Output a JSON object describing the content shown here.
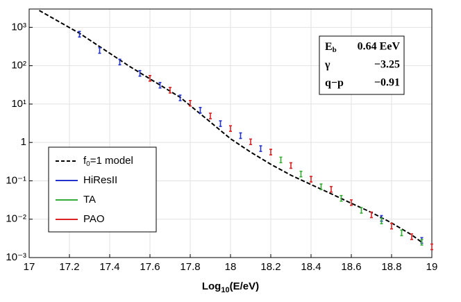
{
  "chart_data": {
    "type": "scatter",
    "x_label": {
      "text": "Log",
      "sub": "10",
      "rest": "(E/eV)"
    },
    "xlim": [
      17,
      19
    ],
    "xticks": [
      17,
      17.2,
      17.4,
      17.6,
      17.8,
      18,
      18.2,
      18.4,
      18.6,
      18.8,
      19
    ],
    "ylim": [
      0.001,
      3000
    ],
    "log_y": true,
    "grid": true,
    "yticks": [
      {
        "value": 0.001,
        "label": "10⁻³"
      },
      {
        "value": 0.01,
        "label": "10⁻²"
      },
      {
        "value": 0.1,
        "label": "10⁻¹"
      },
      1,
      {
        "value": 10,
        "label": "10¹"
      },
      {
        "value": 100,
        "label": "10²"
      },
      {
        "value": 1000,
        "label": "10³"
      }
    ],
    "legend": "lower left",
    "model": {
      "name": {
        "text": "f",
        "sub": "0",
        "rest": "=1 model"
      },
      "color": "#000000",
      "x": [
        17.05,
        17.25,
        17.5,
        17.75,
        17.9,
        18.0,
        18.1,
        18.2,
        18.3,
        18.4,
        18.5,
        18.6,
        18.7,
        18.8,
        18.9,
        18.95
      ],
      "values": [
        2750,
        700,
        95,
        15,
        3.4,
        1.25,
        0.56,
        0.27,
        0.14,
        0.08,
        0.046,
        0.026,
        0.015,
        0.008,
        0.0039,
        0.0025
      ]
    },
    "series": [
      {
        "name": "HiResII",
        "color": "#2233cc",
        "x": [
          17.25,
          17.35,
          17.45,
          17.55,
          17.65,
          17.75,
          17.85,
          17.95,
          18.05,
          18.15,
          18.75,
          18.95
        ],
        "values": [
          660,
          250,
          125,
          63,
          31,
          14.5,
          6.9,
          3.1,
          1.5,
          0.69,
          0.0105,
          0.0028
        ]
      },
      {
        "name": "TA",
        "color": "#33aa33",
        "x": [
          18.25,
          18.35,
          18.45,
          18.55,
          18.65,
          18.75,
          18.85,
          18.95
        ],
        "values": [
          0.35,
          0.15,
          0.07,
          0.035,
          0.017,
          0.009,
          0.0044,
          0.0025
        ]
      },
      {
        "name": "PAO",
        "color": "#dd2222",
        "x": [
          17.6,
          17.7,
          17.8,
          17.9,
          18.0,
          18.1,
          18.2,
          18.3,
          18.4,
          18.5,
          18.6,
          18.7,
          18.8,
          18.9,
          19.0
        ],
        "values": [
          47,
          23,
          10.5,
          4.9,
          2.3,
          1.04,
          0.56,
          0.25,
          0.11,
          0.06,
          0.027,
          0.013,
          0.0066,
          0.0035,
          0.0019
        ]
      }
    ],
    "params": [
      {
        "symbol": "E",
        "sub": "b",
        "value": "0.64  EeV"
      },
      {
        "symbol": "γ",
        "value": "−3.25"
      },
      {
        "symbol": "q−p",
        "value": "−0.91"
      }
    ]
  }
}
